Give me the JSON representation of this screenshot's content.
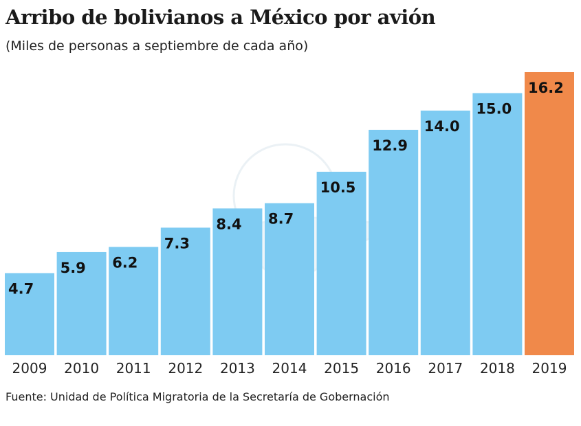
{
  "chart_data": {
    "type": "bar",
    "title": "Arribo de bolivianos a México por avión",
    "subtitle": "(Miles de personas a septiembre de cada año)",
    "categories": [
      "2009",
      "2010",
      "2011",
      "2012",
      "2013",
      "2014",
      "2015",
      "2016",
      "2017",
      "2018",
      "2019"
    ],
    "values": [
      4.7,
      5.9,
      6.2,
      7.3,
      8.4,
      8.7,
      10.5,
      12.9,
      14.0,
      15.0,
      16.2
    ],
    "data_labels": [
      "4.7",
      "5.9",
      "6.2",
      "7.3",
      "8.4",
      "8.7",
      "10.5",
      "12.9",
      "14.0",
      "15.0",
      "16.2"
    ],
    "highlight_index": 10,
    "colors": {
      "bar": "#7ecbf2",
      "highlight": "#f0894a"
    },
    "ylim": [
      0,
      16.2
    ],
    "grid": false,
    "xlabel": "",
    "ylabel": "",
    "source": "Fuente: Unidad de Política Migratoria de la Secretaría de Gobernación"
  }
}
